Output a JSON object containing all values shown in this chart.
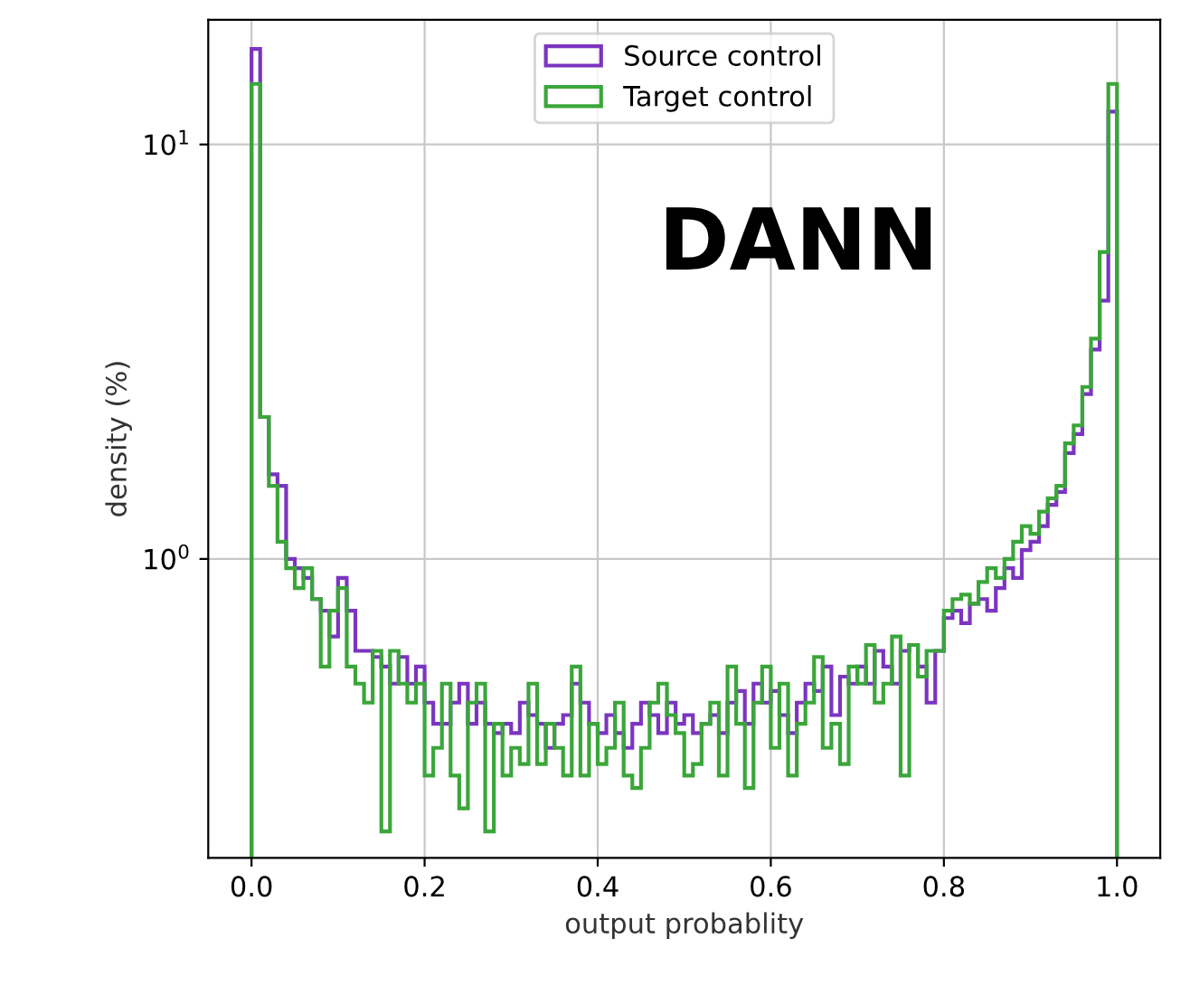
{
  "chart_data": {
    "type": "histogram",
    "xlabel": "output probablity",
    "ylabel": "density (%)",
    "annotations": [
      "DANN"
    ],
    "bins": [
      0,
      0.01,
      0.02,
      0.03,
      0.04,
      0.05,
      0.06,
      0.07,
      0.08,
      0.09,
      0.1,
      0.11,
      0.12,
      0.13,
      0.14,
      0.15,
      0.16,
      0.17,
      0.18,
      0.19,
      0.2,
      0.21,
      0.22,
      0.23,
      0.24,
      0.25,
      0.26,
      0.27,
      0.28,
      0.29,
      0.3,
      0.31,
      0.32,
      0.33,
      0.34,
      0.35,
      0.36,
      0.37,
      0.38,
      0.39,
      0.4,
      0.41,
      0.42,
      0.43,
      0.44,
      0.45,
      0.46,
      0.47,
      0.48,
      0.49,
      0.5,
      0.51,
      0.52,
      0.53,
      0.54,
      0.55,
      0.56,
      0.57,
      0.58,
      0.59,
      0.6,
      0.61,
      0.62,
      0.63,
      0.64,
      0.65,
      0.66,
      0.67,
      0.68,
      0.69,
      0.7,
      0.71,
      0.72,
      0.73,
      0.74,
      0.75,
      0.76,
      0.77,
      0.78,
      0.79,
      0.8,
      0.81,
      0.82,
      0.83,
      0.84,
      0.85,
      0.86,
      0.87,
      0.88,
      0.89,
      0.9,
      0.91,
      0.92,
      0.93,
      0.94,
      0.95,
      0.96,
      0.97,
      0.98,
      0.99,
      1.0
    ],
    "series": [
      {
        "name": "Source control",
        "color": "#7b35c0",
        "values": [
          17,
          2.2,
          1.6,
          1.5,
          1.0,
          0.95,
          0.9,
          0.8,
          0.75,
          0.65,
          0.9,
          0.75,
          0.6,
          0.6,
          0.58,
          0.55,
          0.5,
          0.58,
          0.5,
          0.55,
          0.45,
          0.4,
          0.4,
          0.45,
          0.5,
          0.4,
          0.45,
          0.4,
          0.38,
          0.4,
          0.38,
          0.45,
          0.42,
          0.4,
          0.35,
          0.4,
          0.42,
          0.5,
          0.45,
          0.4,
          0.38,
          0.42,
          0.38,
          0.35,
          0.4,
          0.45,
          0.42,
          0.38,
          0.45,
          0.4,
          0.42,
          0.38,
          0.4,
          0.42,
          0.38,
          0.45,
          0.48,
          0.4,
          0.5,
          0.45,
          0.48,
          0.42,
          0.38,
          0.45,
          0.5,
          0.48,
          0.55,
          0.42,
          0.52,
          0.5,
          0.55,
          0.5,
          0.6,
          0.55,
          0.5,
          0.6,
          0.62,
          0.55,
          0.45,
          0.6,
          0.72,
          0.75,
          0.7,
          0.78,
          0.8,
          0.75,
          0.85,
          0.95,
          0.9,
          1.05,
          1.1,
          1.2,
          1.35,
          1.45,
          1.8,
          2.0,
          2.5,
          3.2,
          4.2,
          12
        ]
      },
      {
        "name": "Target control",
        "color": "#3aa63a",
        "values": [
          14,
          2.2,
          1.5,
          1.1,
          0.95,
          0.85,
          0.95,
          0.8,
          0.55,
          0.75,
          0.85,
          0.55,
          0.5,
          0.45,
          0.6,
          0.22,
          0.6,
          0.5,
          0.45,
          0.5,
          0.3,
          0.35,
          0.5,
          0.3,
          0.25,
          0.45,
          0.5,
          0.22,
          0.4,
          0.3,
          0.35,
          0.32,
          0.5,
          0.32,
          0.4,
          0.35,
          0.3,
          0.55,
          0.3,
          0.4,
          0.32,
          0.35,
          0.45,
          0.3,
          0.28,
          0.35,
          0.45,
          0.5,
          0.42,
          0.38,
          0.3,
          0.32,
          0.4,
          0.45,
          0.3,
          0.55,
          0.4,
          0.28,
          0.45,
          0.55,
          0.35,
          0.5,
          0.3,
          0.4,
          0.45,
          0.58,
          0.35,
          0.4,
          0.32,
          0.55,
          0.5,
          0.62,
          0.45,
          0.5,
          0.65,
          0.3,
          0.62,
          0.52,
          0.6,
          0.6,
          0.75,
          0.8,
          0.82,
          0.78,
          0.88,
          0.95,
          0.9,
          1.0,
          1.1,
          1.2,
          1.15,
          1.3,
          1.4,
          1.5,
          1.9,
          2.1,
          2.6,
          3.4,
          5.5,
          14
        ]
      }
    ],
    "xlim": [
      -0.05,
      1.05
    ],
    "ylim": [
      0.19,
      20
    ],
    "log": "y",
    "xticks": [
      {
        "value": 0,
        "label": "0.0"
      },
      {
        "value": 0.2,
        "label": "0.2"
      },
      {
        "value": 0.4,
        "label": "0.4"
      },
      {
        "value": 0.6,
        "label": "0.6"
      },
      {
        "value": 0.8,
        "label": "0.8"
      },
      {
        "value": 1.0,
        "label": "1.0"
      }
    ],
    "yticks": [
      {
        "value": 1,
        "label": "10$^{0}$"
      },
      {
        "value": 10,
        "label": "10$^{1}$"
      }
    ],
    "grid": true,
    "legend": "top"
  }
}
